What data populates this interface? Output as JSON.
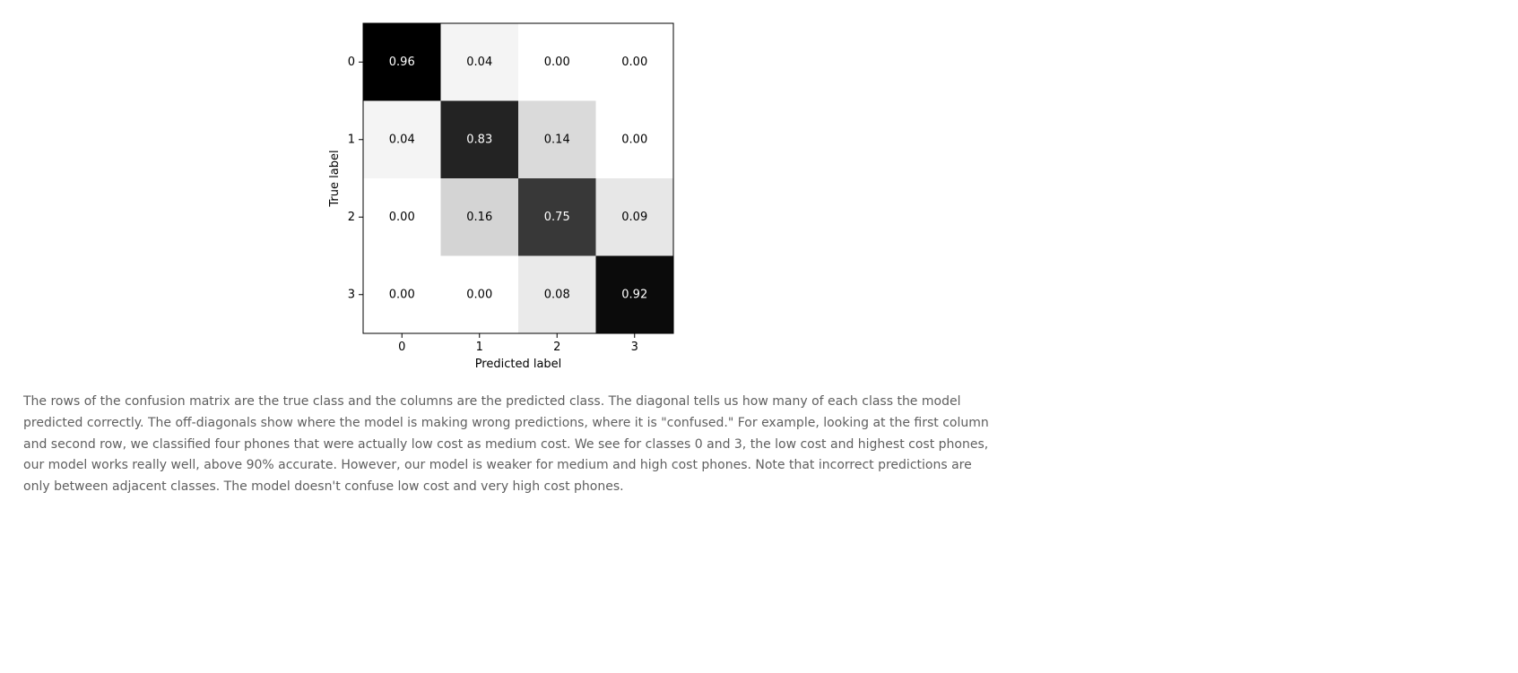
{
  "chart_data": {
    "type": "heatmap",
    "title": "",
    "xlabel": "Predicted label",
    "ylabel": "True label",
    "x_categories": [
      "0",
      "1",
      "2",
      "3"
    ],
    "y_categories": [
      "0",
      "1",
      "2",
      "3"
    ],
    "values": [
      [
        0.96,
        0.04,
        0.0,
        0.0
      ],
      [
        0.04,
        0.83,
        0.14,
        0.0
      ],
      [
        0.0,
        0.16,
        0.75,
        0.09
      ],
      [
        0.0,
        0.0,
        0.08,
        0.92
      ]
    ],
    "colormap": "greys",
    "vmin": 0.0,
    "vmax": 0.96,
    "grid": false,
    "legend": "none"
  },
  "description": "The rows of the confusion matrix are the true class and the columns are the predicted class. The diagonal tells us how many of each class the model predicted correctly. The off-diagonals show where the model is making wrong predictions, where it is \"confused.\" For example, looking at the first column and second row, we classified four phones that were actually low cost as medium cost. We see for classes 0 and 3, the low cost and highest cost phones, our model works really well, above 90% accurate. However, our model is weaker for medium and high cost phones. Note that incorrect predictions are only between adjacent classes. The model doesn't confuse low cost and very high cost phones."
}
